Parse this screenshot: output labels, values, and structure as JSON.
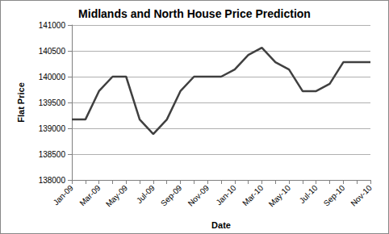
{
  "chart_data": {
    "type": "line",
    "title": "Midlands and North House Price Prediction",
    "x_label": "Date",
    "y_label": "Flat Price",
    "categories": [
      "Jan-09",
      null,
      "Mar-09",
      null,
      "May-09",
      null,
      "Jul-09",
      null,
      "Sep-09",
      null,
      "Nov-09",
      null,
      "Jan-10",
      null,
      "Mar-10",
      null,
      "May-10",
      null,
      "Jul-10",
      null,
      "Sep-10",
      null,
      "Nov-10"
    ],
    "values": [
      139170,
      139170,
      139720,
      140000,
      140000,
      139170,
      138890,
      139170,
      139720,
      140000,
      140000,
      140000,
      140140,
      140420,
      140560,
      140280,
      140140,
      139720,
      139720,
      139860,
      140280,
      140280,
      140280
    ],
    "color": "#404040",
    "ylim": [
      138000,
      141000
    ],
    "yticks": [
      138000,
      138500,
      139000,
      139500,
      140000,
      140500,
      141000
    ],
    "grid": true
  }
}
